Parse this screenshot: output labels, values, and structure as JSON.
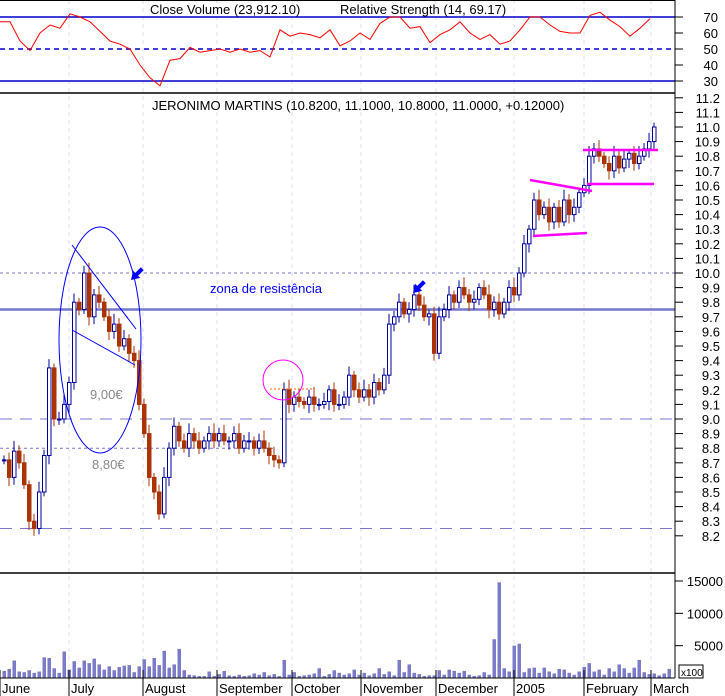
{
  "chart_data": [
    {
      "type": "line",
      "panel": "rsi",
      "title_overlap": [
        "Close Volume (23,912.10)",
        "Relative Strength (14, 69.17)"
      ],
      "ylim": [
        20,
        80
      ],
      "yticks": [
        "70",
        "60",
        "50",
        "40",
        "30"
      ],
      "reference_lines": {
        "upper": 70,
        "middle": 50,
        "lower": 30
      },
      "color": "#ff0000",
      "values": [
        67,
        67,
        55,
        49,
        60,
        65,
        63,
        72,
        70,
        67,
        61,
        55,
        53,
        50,
        40,
        32,
        27,
        43,
        44,
        51,
        48,
        49,
        50,
        48,
        50,
        48,
        49,
        45,
        62,
        58,
        60,
        59,
        57,
        62,
        52,
        55,
        60,
        56,
        66,
        70,
        70,
        63,
        64,
        54,
        59,
        62,
        67,
        60,
        56,
        59,
        53,
        55,
        62,
        70,
        70,
        65,
        61,
        60,
        60,
        71,
        73,
        68,
        64,
        58,
        63,
        69
      ]
    },
    {
      "type": "candlestick",
      "panel": "price",
      "title": "JERONIMO MARTINS (10.8200, 11.1000, 10.8000, 11.0000, +0.12000)",
      "ylim": [
        8.1,
        11.35
      ],
      "yticks": [
        "11.2",
        "11.1",
        "11.0",
        "10.9",
        "10.8",
        "10.7",
        "10.6",
        "10.5",
        "10.4",
        "10.3",
        "10.2",
        "10.1",
        "10.0",
        "9.9",
        "9.8",
        "9.7",
        "9.6",
        "9.5",
        "9.4",
        "9.3",
        "9.2",
        "9.1",
        "9.0",
        "8.9",
        "8.8",
        "8.7",
        "8.6",
        "8.5",
        "8.4",
        "8.3",
        "8.2"
      ],
      "up_color": "#000099",
      "down_color": "#aa3300",
      "closes": [
        8.72,
        8.6,
        8.78,
        8.7,
        8.55,
        8.3,
        8.25,
        8.5,
        8.75,
        9.35,
        9.0,
        9.0,
        9.1,
        9.25,
        9.8,
        9.75,
        10.0,
        9.7,
        9.85,
        9.8,
        9.7,
        9.6,
        9.65,
        9.5,
        9.55,
        9.45,
        9.4,
        9.1,
        8.9,
        8.6,
        8.5,
        8.35,
        8.6,
        8.8,
        8.95,
        8.85,
        8.8,
        8.9,
        8.85,
        8.8,
        8.85,
        8.9,
        8.85,
        8.9,
        8.85,
        8.85,
        8.9,
        8.8,
        8.85,
        8.85,
        8.8,
        8.85,
        8.8,
        8.75,
        8.72,
        8.7,
        9.2,
        9.1,
        9.15,
        9.12,
        9.1,
        9.15,
        9.1,
        9.1,
        9.12,
        9.2,
        9.1,
        9.1,
        9.15,
        9.3,
        9.2,
        9.15,
        9.2,
        9.15,
        9.25,
        9.2,
        9.3,
        9.65,
        9.7,
        9.8,
        9.72,
        9.75,
        9.85,
        9.78,
        9.7,
        9.72,
        9.45,
        9.7,
        9.75,
        9.85,
        9.8,
        9.9,
        9.85,
        9.8,
        9.82,
        9.9,
        9.85,
        9.75,
        9.8,
        9.72,
        9.8,
        9.9,
        9.85,
        10.0,
        10.2,
        10.3,
        10.5,
        10.4,
        10.45,
        10.35,
        10.45,
        10.35,
        10.5,
        10.4,
        10.45,
        10.55,
        10.6,
        10.8,
        10.85,
        10.8,
        10.75,
        10.7,
        10.8,
        10.72,
        10.78,
        10.82,
        10.75,
        10.8,
        10.85,
        10.9,
        11.0
      ],
      "annotations": {
        "resistance_label": "zona de resistência",
        "resistance_level": 9.75,
        "level_10": 10.0,
        "level_9": 9.0,
        "level_880": 8.8,
        "level_825": 8.25,
        "label_900": "9,00€",
        "label_880": "8,80€",
        "ellipse_color": "#0000ff",
        "pattern_color": "#ff00ff",
        "resistance_color": "#7777cc"
      }
    },
    {
      "type": "bar",
      "panel": "volume",
      "ylim": [
        0,
        16000
      ],
      "yticks": [
        "15000",
        "10000",
        "5000"
      ],
      "unit_label": "x100",
      "color": "#7b7bc8",
      "values": [
        1100,
        1400,
        2700,
        1000,
        900,
        1200,
        800,
        1000,
        3200,
        3100,
        1500,
        800,
        4100,
        1300,
        2600,
        1600,
        2700,
        2300,
        3000,
        2100,
        1300,
        1800,
        1200,
        1700,
        1900,
        2000,
        900,
        1800,
        2900,
        1800,
        3100,
        2000,
        4200,
        1600,
        2100,
        4500,
        1200,
        500,
        400,
        300,
        300,
        1000,
        300,
        600,
        1100,
        400,
        300,
        500,
        300,
        400,
        700,
        500,
        900,
        400,
        600,
        300,
        2800,
        500,
        900,
        300,
        400,
        500,
        700,
        1500,
        300,
        600,
        1200,
        800,
        500,
        700,
        1300,
        500,
        800,
        400,
        700,
        1500,
        600,
        1000,
        400,
        2800,
        900,
        2100,
        800,
        600,
        300,
        400,
        400,
        1200,
        500,
        1300,
        1100,
        800,
        1100,
        500,
        300,
        400,
        900,
        500,
        6000,
        14800,
        1500,
        1000,
        5000,
        5300,
        900,
        1500,
        1600,
        800,
        1600,
        1000,
        700,
        1400,
        1300,
        800,
        500,
        1000,
        1700,
        2300,
        1000,
        1300,
        500,
        1500,
        1000,
        2100,
        1500,
        800,
        1600,
        2800,
        900,
        600,
        700,
        400,
        700,
        1400
      ]
    }
  ],
  "x_axis": {
    "months": [
      "June",
      "July",
      "August",
      "September",
      "October",
      "November",
      "December",
      "2005",
      "February",
      "March"
    ]
  }
}
